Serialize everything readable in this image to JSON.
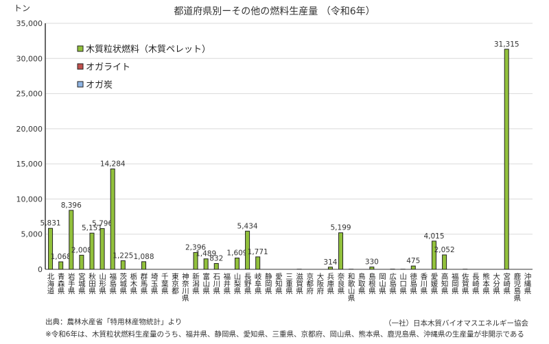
{
  "chart_data": {
    "type": "bar",
    "title": "都道府県別ーその他の燃料生産量 （令和6年）",
    "ylabel": "トン",
    "ylim": [
      0,
      35000
    ],
    "yticks": [
      "0",
      "5,000",
      "10,000",
      "15,000",
      "20,000",
      "25,000",
      "30,000",
      "35,000"
    ],
    "grid": true,
    "legend_position": "top-left",
    "legend": [
      {
        "name": "木質粒状燃料（木質ペレット）",
        "color": "#92c13c"
      },
      {
        "name": "オガライト",
        "color": "#c0504d"
      },
      {
        "name": "オガ炭",
        "color": "#8eb4e3"
      }
    ],
    "categories": [
      "北海道",
      "青森県",
      "岩手県",
      "宮城県",
      "秋田県",
      "山形県",
      "福島県",
      "茨城県",
      "栃木県",
      "群馬県",
      "埼玉県",
      "千葉県",
      "東京都",
      "神奈川県",
      "新潟県",
      "富山県",
      "石川県",
      "福井県",
      "山梨県",
      "長野県",
      "岐阜県",
      "静岡県",
      "愛知県",
      "三重県",
      "滋賀県",
      "京都府",
      "大阪府",
      "兵庫県",
      "奈良県",
      "和歌山県",
      "鳥取県",
      "島根県",
      "岡山県",
      "広島県",
      "山口県",
      "徳島県",
      "香川県",
      "愛媛県",
      "高知県",
      "福岡県",
      "佐賀県",
      "長崎県",
      "熊本県",
      "大分県",
      "宮崎県",
      "鹿児島県",
      "沖縄県"
    ],
    "series": [
      {
        "name": "木質粒状燃料（木質ペレット）",
        "values": [
          5831,
          1068,
          8396,
          2008,
          5151,
          5796,
          14284,
          1225,
          0,
          1088,
          0,
          0,
          0,
          0,
          2396,
          1489,
          832,
          0,
          1609,
          5434,
          1771,
          0,
          0,
          0,
          20,
          0,
          0,
          314,
          5199,
          20,
          0,
          330,
          0,
          30,
          20,
          475,
          0,
          4015,
          2052,
          0,
          20,
          0,
          0,
          0,
          31315,
          0,
          0
        ],
        "labels": [
          "5,831",
          "1,068",
          "8,396",
          "2,008",
          "5,151",
          "5,796",
          "14,284",
          "1,225",
          "",
          "1,088",
          "",
          "",
          "",
          "",
          "2,396",
          "1,489",
          "832",
          "",
          "1,609",
          "5,434",
          "1,771",
          "",
          "",
          "",
          "",
          "",
          "",
          "314",
          "5,199",
          "",
          "",
          "330",
          "",
          "",
          "",
          "475",
          "",
          "4,015",
          "2,052",
          "",
          "",
          "",
          "",
          "",
          "31,315",
          "",
          ""
        ]
      }
    ]
  },
  "footnotes": {
    "source": "出典：農林水産省「特用林産物統計」より",
    "org": "（一社）日本木質バイオマスエネルギー協会",
    "note": "※令和6年は、木質粒状燃料生産量のうち、福井県、静岡県、愛知県、三重県、京都府、岡山県、熊本県、鹿児島県、沖縄県の生産量が非開示である"
  }
}
